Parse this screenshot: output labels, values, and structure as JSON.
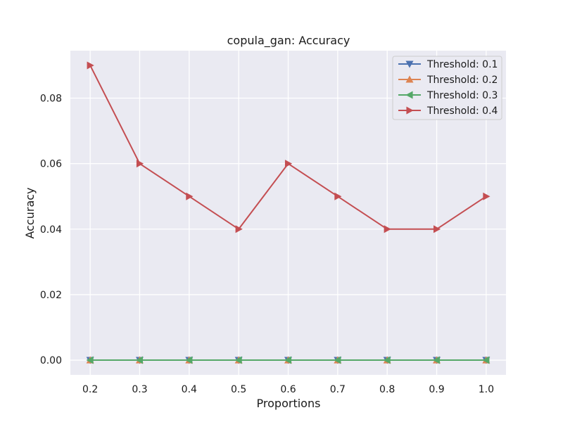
{
  "chart_data": {
    "type": "line",
    "title": "copula_gan: Accuracy",
    "xlabel": "Proportions",
    "ylabel": "Accuracy",
    "x": [
      0.2,
      0.3,
      0.4,
      0.5,
      0.6,
      0.7,
      0.8,
      0.9,
      1.0
    ],
    "x_tick_labels": [
      "0.2",
      "0.3",
      "0.4",
      "0.5",
      "0.6",
      "0.7",
      "0.8",
      "0.9",
      "1.0"
    ],
    "y_ticks": [
      0.0,
      0.02,
      0.04,
      0.06,
      0.08
    ],
    "y_tick_labels": [
      "0.00",
      "0.02",
      "0.04",
      "0.06",
      "0.08"
    ],
    "xlim": [
      0.16,
      1.04
    ],
    "ylim": [
      -0.0045,
      0.0945
    ],
    "grid": true,
    "legend_position": "top-right",
    "background_color": "#eaeaf2",
    "grid_color": "#ffffff",
    "series": [
      {
        "name": "Threshold: 0.1",
        "color": "#4c72b0",
        "marker": "triangle-down",
        "values": [
          0,
          0,
          0,
          0,
          0,
          0,
          0,
          0,
          0
        ]
      },
      {
        "name": "Threshold: 0.2",
        "color": "#dd8452",
        "marker": "triangle-up",
        "values": [
          0,
          0,
          0,
          0,
          0,
          0,
          0,
          0,
          0
        ]
      },
      {
        "name": "Threshold: 0.3",
        "color": "#55a868",
        "marker": "triangle-left",
        "values": [
          0,
          0,
          0,
          0,
          0,
          0,
          0,
          0,
          0
        ]
      },
      {
        "name": "Threshold: 0.4",
        "color": "#c44e52",
        "marker": "triangle-right",
        "values": [
          0.09,
          0.06,
          0.05,
          0.04,
          0.06,
          0.05,
          0.04,
          0.04,
          0.05
        ]
      }
    ]
  }
}
